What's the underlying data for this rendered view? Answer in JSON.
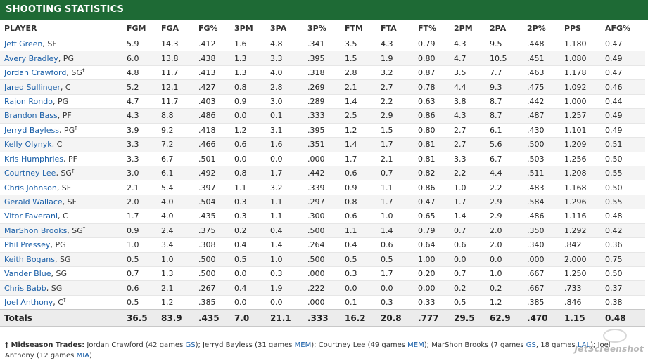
{
  "title": "SHOOTING STATISTICS",
  "columns": [
    "PLAYER",
    "FGM",
    "FGA",
    "FG%",
    "3PM",
    "3PA",
    "3P%",
    "FTM",
    "FTA",
    "FT%",
    "2PM",
    "2PA",
    "2P%",
    "PPS",
    "AFG%"
  ],
  "rows": [
    {
      "name": "Jeff Green",
      "pos": ", SF",
      "trade": "",
      "stats": [
        "5.9",
        "14.3",
        ".412",
        "1.6",
        "4.8",
        ".341",
        "3.5",
        "4.3",
        "0.79",
        "4.3",
        "9.5",
        ".448",
        "1.180",
        "0.47"
      ]
    },
    {
      "name": "Avery Bradley",
      "pos": ", PG",
      "trade": "",
      "stats": [
        "6.0",
        "13.8",
        ".438",
        "1.3",
        "3.3",
        ".395",
        "1.5",
        "1.9",
        "0.80",
        "4.7",
        "10.5",
        ".451",
        "1.080",
        "0.49"
      ]
    },
    {
      "name": "Jordan Crawford",
      "pos": ", SG",
      "trade": "†",
      "stats": [
        "4.8",
        "11.7",
        ".413",
        "1.3",
        "4.0",
        ".318",
        "2.8",
        "3.2",
        "0.87",
        "3.5",
        "7.7",
        ".463",
        "1.178",
        "0.47"
      ]
    },
    {
      "name": "Jared Sullinger",
      "pos": ", C",
      "trade": "",
      "stats": [
        "5.2",
        "12.1",
        ".427",
        "0.8",
        "2.8",
        ".269",
        "2.1",
        "2.7",
        "0.78",
        "4.4",
        "9.3",
        ".475",
        "1.092",
        "0.46"
      ]
    },
    {
      "name": "Rajon Rondo",
      "pos": ", PG",
      "trade": "",
      "stats": [
        "4.7",
        "11.7",
        ".403",
        "0.9",
        "3.0",
        ".289",
        "1.4",
        "2.2",
        "0.63",
        "3.8",
        "8.7",
        ".442",
        "1.000",
        "0.44"
      ]
    },
    {
      "name": "Brandon Bass",
      "pos": ", PF",
      "trade": "",
      "stats": [
        "4.3",
        "8.8",
        ".486",
        "0.0",
        "0.1",
        ".333",
        "2.5",
        "2.9",
        "0.86",
        "4.3",
        "8.7",
        ".487",
        "1.257",
        "0.49"
      ]
    },
    {
      "name": "Jerryd Bayless",
      "pos": ", PG",
      "trade": "†",
      "stats": [
        "3.9",
        "9.2",
        ".418",
        "1.2",
        "3.1",
        ".395",
        "1.2",
        "1.5",
        "0.80",
        "2.7",
        "6.1",
        ".430",
        "1.101",
        "0.49"
      ]
    },
    {
      "name": "Kelly Olynyk",
      "pos": ", C",
      "trade": "",
      "stats": [
        "3.3",
        "7.2",
        ".466",
        "0.6",
        "1.6",
        ".351",
        "1.4",
        "1.7",
        "0.81",
        "2.7",
        "5.6",
        ".500",
        "1.209",
        "0.51"
      ]
    },
    {
      "name": "Kris Humphries",
      "pos": ", PF",
      "trade": "",
      "stats": [
        "3.3",
        "6.7",
        ".501",
        "0.0",
        "0.0",
        ".000",
        "1.7",
        "2.1",
        "0.81",
        "3.3",
        "6.7",
        ".503",
        "1.256",
        "0.50"
      ]
    },
    {
      "name": "Courtney Lee",
      "pos": ", SG",
      "trade": "†",
      "stats": [
        "3.0",
        "6.1",
        ".492",
        "0.8",
        "1.7",
        ".442",
        "0.6",
        "0.7",
        "0.82",
        "2.2",
        "4.4",
        ".511",
        "1.208",
        "0.55"
      ]
    },
    {
      "name": "Chris Johnson",
      "pos": ", SF",
      "trade": "",
      "stats": [
        "2.1",
        "5.4",
        ".397",
        "1.1",
        "3.2",
        ".339",
        "0.9",
        "1.1",
        "0.86",
        "1.0",
        "2.2",
        ".483",
        "1.168",
        "0.50"
      ]
    },
    {
      "name": "Gerald Wallace",
      "pos": ", SF",
      "trade": "",
      "stats": [
        "2.0",
        "4.0",
        ".504",
        "0.3",
        "1.1",
        ".297",
        "0.8",
        "1.7",
        "0.47",
        "1.7",
        "2.9",
        ".584",
        "1.296",
        "0.55"
      ]
    },
    {
      "name": "Vitor Faverani",
      "pos": ", C",
      "trade": "",
      "stats": [
        "1.7",
        "4.0",
        ".435",
        "0.3",
        "1.1",
        ".300",
        "0.6",
        "1.0",
        "0.65",
        "1.4",
        "2.9",
        ".486",
        "1.116",
        "0.48"
      ]
    },
    {
      "name": "MarShon Brooks",
      "pos": ", SG",
      "trade": "†",
      "stats": [
        "0.9",
        "2.4",
        ".375",
        "0.2",
        "0.4",
        ".500",
        "1.1",
        "1.4",
        "0.79",
        "0.7",
        "2.0",
        ".350",
        "1.292",
        "0.42"
      ]
    },
    {
      "name": "Phil Pressey",
      "pos": ", PG",
      "trade": "",
      "stats": [
        "1.0",
        "3.4",
        ".308",
        "0.4",
        "1.4",
        ".264",
        "0.4",
        "0.6",
        "0.64",
        "0.6",
        "2.0",
        ".340",
        ".842",
        "0.36"
      ]
    },
    {
      "name": "Keith Bogans",
      "pos": ", SG",
      "trade": "",
      "stats": [
        "0.5",
        "1.0",
        ".500",
        "0.5",
        "1.0",
        ".500",
        "0.5",
        "0.5",
        "1.00",
        "0.0",
        "0.0",
        ".000",
        "2.000",
        "0.75"
      ]
    },
    {
      "name": "Vander Blue",
      "pos": ", SG",
      "trade": "",
      "stats": [
        "0.7",
        "1.3",
        ".500",
        "0.0",
        "0.3",
        ".000",
        "0.3",
        "1.7",
        "0.20",
        "0.7",
        "1.0",
        ".667",
        "1.250",
        "0.50"
      ]
    },
    {
      "name": "Chris Babb",
      "pos": ", SG",
      "trade": "",
      "stats": [
        "0.6",
        "2.1",
        ".267",
        "0.4",
        "1.9",
        ".222",
        "0.0",
        "0.0",
        "0.00",
        "0.2",
        "0.2",
        ".667",
        ".733",
        "0.37"
      ]
    },
    {
      "name": "Joel Anthony",
      "pos": ", C",
      "trade": "†",
      "stats": [
        "0.5",
        "1.2",
        ".385",
        "0.0",
        "0.0",
        ".000",
        "0.1",
        "0.3",
        "0.33",
        "0.5",
        "1.2",
        ".385",
        ".846",
        "0.38"
      ]
    }
  ],
  "totals": {
    "label": "Totals",
    "stats": [
      "36.5",
      "83.9",
      ".435",
      "7.0",
      "21.1",
      ".333",
      "16.2",
      "20.8",
      ".777",
      "29.5",
      "62.9",
      ".470",
      "1.15",
      "0.48"
    ]
  },
  "footnote": {
    "dagger": "†",
    "label": "Midseason Trades:",
    "items": [
      {
        "pre": " Jordan Crawford (42 games ",
        "team": "GS",
        "post": "); "
      },
      {
        "pre": "Jerryd Bayless (31 games ",
        "team": "MEM",
        "post": "); "
      },
      {
        "pre": "Courtney Lee (49 games ",
        "team": "MEM",
        "post": "); "
      },
      {
        "pre": "MarShon Brooks (7 games ",
        "team": "GS",
        "post": ", 18 games "
      },
      {
        "pre": "",
        "team": "LAL",
        "post": "); "
      },
      {
        "pre": "Joel Anthony (12 games ",
        "team": "MIA",
        "post": ")"
      }
    ]
  },
  "watermark": "JetScreenshot"
}
